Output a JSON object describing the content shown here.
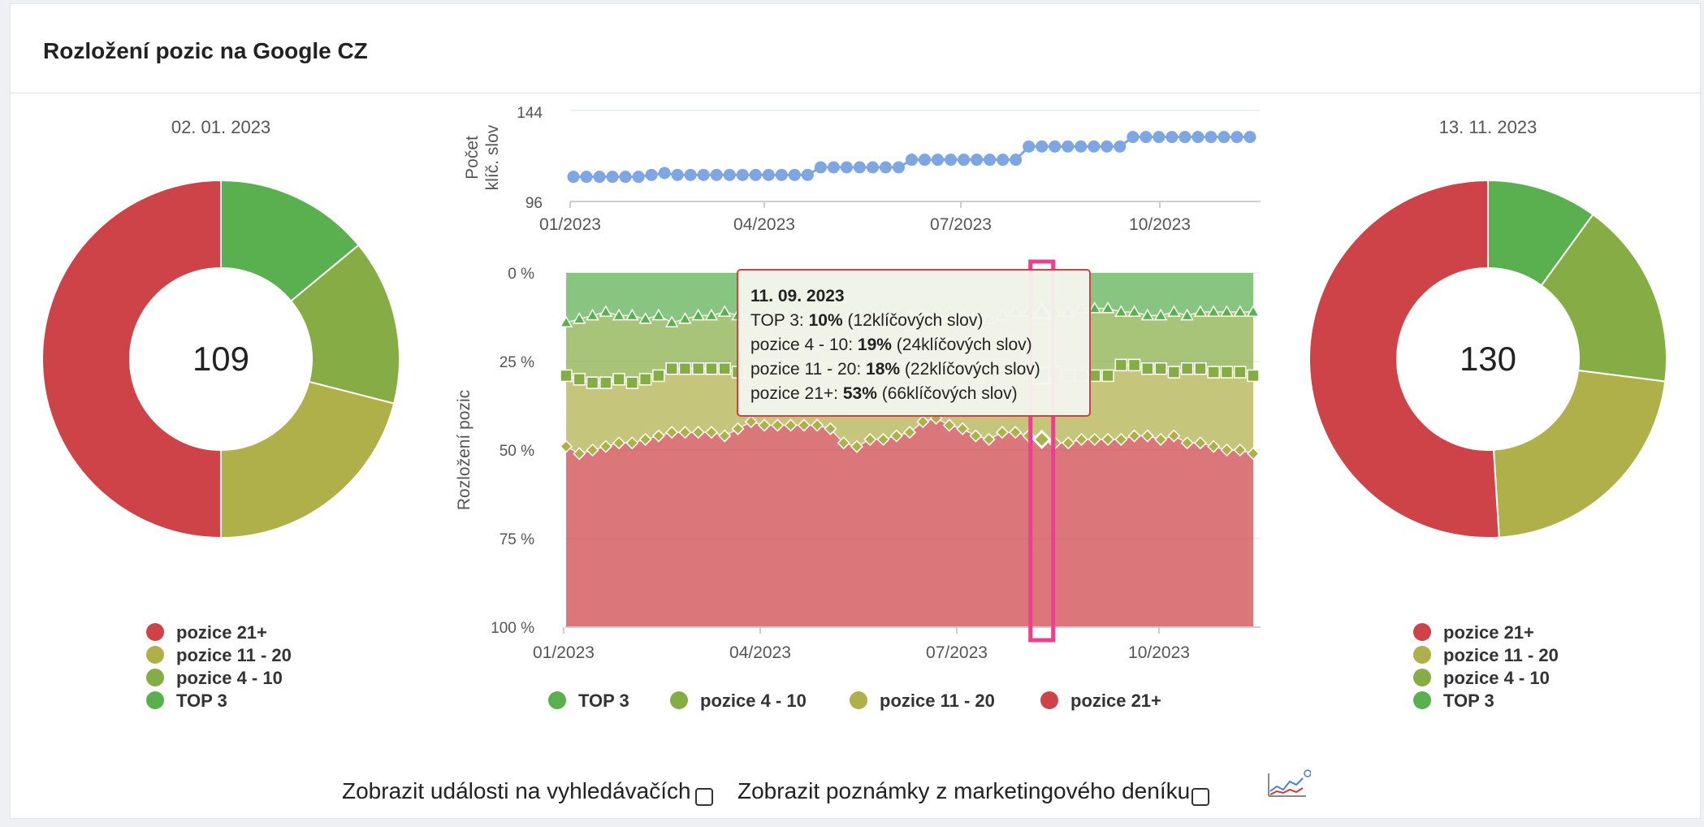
{
  "title": "Rozložení pozic na Google CZ",
  "colors": {
    "top3": "#5aaf4f",
    "pos4_10": "#86ad45",
    "pos11_20": "#afb04a",
    "pos21": "#cd4348",
    "count_line": "#7ea6e3",
    "highlight": "#e8418d"
  },
  "icons": [
    "trend-chart-icon",
    "checkbox"
  ],
  "footer": {
    "events_label": "Zobrazit události na vyhledávačích",
    "notes_label": "Zobrazit poznámky z marketingového deníku"
  },
  "chart_data": [
    {
      "type": "pie",
      "variant": "donut",
      "title": "02. 01. 2023",
      "center_label": "109",
      "categories": [
        "TOP 3",
        "pozice 4 - 10",
        "pozice 11 - 20",
        "pozice 21+"
      ],
      "values": [
        14,
        15,
        21,
        50
      ],
      "colors": [
        "#5aaf4f",
        "#86ad45",
        "#afb04a",
        "#cd4348"
      ],
      "legend": [
        "pozice 21+",
        "pozice 11 - 20",
        "pozice 4 - 10",
        "TOP 3"
      ],
      "legend_position": "bottom"
    },
    {
      "type": "line",
      "ylabel": "Počet klíč. slov",
      "yticks": [
        "144",
        "96"
      ],
      "ylim": [
        96,
        144
      ],
      "xticks": [
        "01/2023",
        "04/2023",
        "07/2023",
        "10/2023"
      ],
      "series": [
        {
          "values": [
            109,
            109,
            109,
            109,
            109,
            109,
            110,
            111,
            110,
            110,
            110,
            110,
            110,
            110,
            110,
            110,
            110,
            110,
            110,
            114,
            114,
            114,
            114,
            114,
            114,
            114,
            118,
            118,
            118,
            118,
            118,
            118,
            118,
            118,
            118,
            125,
            125,
            125,
            125,
            125,
            125,
            125,
            125,
            130,
            130,
            130,
            130,
            130,
            130,
            130,
            130,
            130,
            130
          ]
        }
      ]
    },
    {
      "type": "area",
      "stacked": true,
      "ylabel": "Rozložení pozic",
      "yticks": [
        "0 %",
        "25 %",
        "50 %",
        "75 %",
        "100 %"
      ],
      "ylim": [
        0,
        100
      ],
      "xticks": [
        "01/2023",
        "04/2023",
        "07/2023",
        "10/2023"
      ],
      "legend_position": "bottom",
      "series": [
        {
          "name": "TOP 3",
          "marker": "triangle",
          "cumulative_values": [
            14,
            13,
            12,
            11,
            12,
            12,
            13,
            12,
            14,
            13,
            12,
            12,
            11,
            12,
            12,
            11,
            12,
            11,
            12,
            12,
            12,
            12,
            11,
            11,
            12,
            12,
            12,
            12,
            11,
            11,
            12,
            12,
            13,
            12,
            11,
            11,
            11,
            11,
            11,
            10,
            10,
            10,
            11,
            11,
            12,
            12,
            11,
            12,
            11,
            11,
            11,
            11,
            11
          ]
        },
        {
          "name": "pozice 4 - 10",
          "marker": "square",
          "cumulative_values": [
            29,
            30,
            31,
            31,
            30,
            31,
            30,
            29,
            27,
            27,
            27,
            27,
            27,
            28,
            28,
            26,
            26,
            26,
            27,
            27,
            27,
            27,
            27,
            26,
            26,
            27,
            27,
            27,
            26,
            27,
            27,
            27,
            26,
            26,
            27,
            28,
            29,
            28,
            29,
            29,
            29,
            29,
            26,
            26,
            27,
            27,
            28,
            27,
            27,
            28,
            28,
            28,
            29
          ]
        },
        {
          "name": "pozice 11 - 20",
          "marker": "diamond",
          "cumulative_values": [
            49,
            51,
            50,
            49,
            48,
            48,
            47,
            46,
            45,
            45,
            45,
            45,
            46,
            44,
            42,
            43,
            43,
            43,
            43,
            43,
            44,
            48,
            49,
            47,
            47,
            46,
            45,
            42,
            41,
            43,
            44,
            46,
            47,
            45,
            45,
            46,
            47,
            48,
            48,
            47,
            47,
            47,
            47,
            46,
            46,
            47,
            46,
            48,
            48,
            49,
            50,
            50,
            51
          ]
        },
        {
          "name": "pozice 21+",
          "cumulative_values": [
            100,
            100,
            100,
            100,
            100,
            100,
            100,
            100,
            100,
            100,
            100,
            100,
            100,
            100,
            100,
            100,
            100,
            100,
            100,
            100,
            100,
            100,
            100,
            100,
            100,
            100,
            100,
            100,
            100,
            100,
            100,
            100,
            100,
            100,
            100,
            100,
            100,
            100,
            100,
            100,
            100,
            100,
            100,
            100,
            100,
            100,
            100,
            100,
            100,
            100,
            100,
            100,
            100
          ]
        }
      ],
      "highlight_index": 36,
      "tooltip": {
        "date": "11. 09. 2023",
        "rows": [
          {
            "label": "TOP 3:",
            "pct": "10%",
            "count": "(12klíčových slov)"
          },
          {
            "label": "pozice 4 - 10:",
            "pct": "19%",
            "count": "(24klíčových slov)"
          },
          {
            "label": "pozice 11 - 20:",
            "pct": "18%",
            "count": "(22klíčových slov)"
          },
          {
            "label": "pozice 21+:",
            "pct": "53%",
            "count": "(66klíčových slov)"
          }
        ]
      },
      "legend": [
        "TOP 3",
        "pozice 4 - 10",
        "pozice 11 - 20",
        "pozice 21+"
      ]
    },
    {
      "type": "pie",
      "variant": "donut",
      "title": "13. 11. 2023",
      "center_label": "130",
      "categories": [
        "TOP 3",
        "pozice 4 - 10",
        "pozice 11 - 20",
        "pozice 21+"
      ],
      "values": [
        10,
        17,
        22,
        51
      ],
      "colors": [
        "#5aaf4f",
        "#86ad45",
        "#afb04a",
        "#cd4348"
      ],
      "legend": [
        "pozice 21+",
        "pozice 11 - 20",
        "pozice 4 - 10",
        "TOP 3"
      ],
      "legend_position": "bottom"
    }
  ]
}
